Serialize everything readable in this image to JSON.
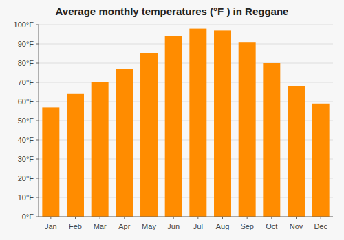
{
  "chart_data": {
    "type": "bar",
    "title": "Average monthly temperatures (°F ) in Reggane",
    "categories": [
      "Jan",
      "Feb",
      "Mar",
      "Apr",
      "May",
      "Jun",
      "Jul",
      "Aug",
      "Sep",
      "Oct",
      "Nov",
      "Dec"
    ],
    "values": [
      57,
      64,
      70,
      77,
      85,
      94,
      98,
      97,
      91,
      80,
      68,
      59
    ],
    "color": "#FF8C00",
    "ylim": [
      0,
      100
    ],
    "yticks": [
      {
        "value": 0,
        "label": "0°F"
      },
      {
        "value": 10,
        "label": "10°F"
      },
      {
        "value": 20,
        "label": "20°F"
      },
      {
        "value": 30,
        "label": "30°F"
      },
      {
        "value": 40,
        "label": "40°F"
      },
      {
        "value": 50,
        "label": "50°F"
      },
      {
        "value": 60,
        "label": "60°F"
      },
      {
        "value": 70,
        "label": "70°F"
      },
      {
        "value": 80,
        "label": "80°F"
      },
      {
        "value": 90,
        "label": "90°F"
      },
      {
        "value": 100,
        "label": "100°F"
      }
    ],
    "grid": true
  }
}
